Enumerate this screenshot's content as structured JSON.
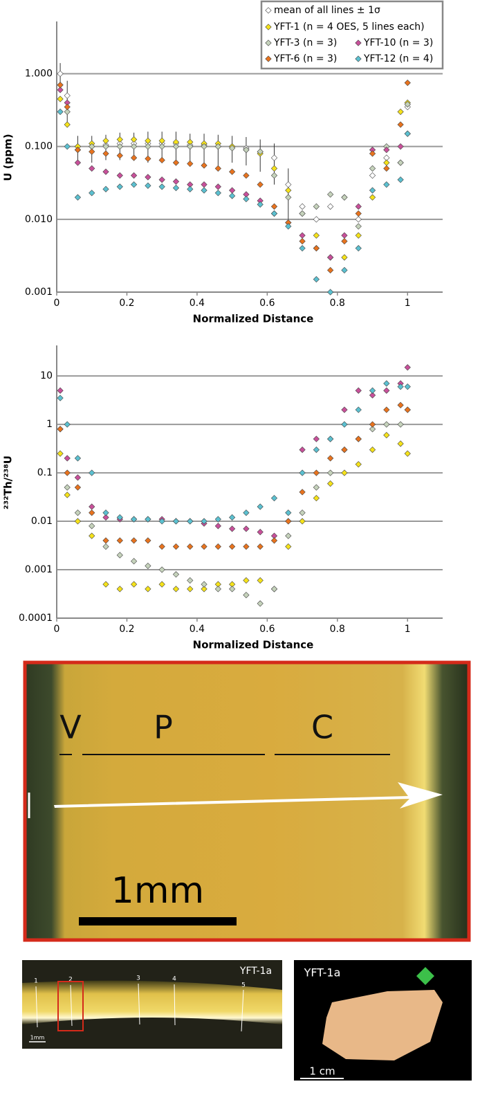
{
  "chart_data": [
    {
      "type": "scatter",
      "log_y": true,
      "grid": true,
      "legend": "upper right",
      "xlabel": "Normalized Distance",
      "ylabel": "U (ppm)",
      "xlim": [
        0,
        1.1
      ],
      "xticks": [
        0,
        0.2,
        0.4,
        0.6,
        0.8,
        1
      ],
      "ylim": [
        0.001,
        5
      ],
      "yticks": [
        {
          "value": 0.001,
          "label": "0.001"
        },
        {
          "value": 0.01,
          "label": "0.010"
        },
        {
          "value": 0.1,
          "label": "0.100"
        },
        {
          "value": 1,
          "label": "1.000"
        }
      ],
      "x": [
        0.01,
        0.03,
        0.06,
        0.1,
        0.14,
        0.18,
        0.22,
        0.26,
        0.3,
        0.34,
        0.38,
        0.42,
        0.46,
        0.5,
        0.54,
        0.58,
        0.62,
        0.66,
        0.7,
        0.74,
        0.78,
        0.82,
        0.86,
        0.9,
        0.94,
        0.98,
        1.0
      ],
      "series": [
        {
          "name": "mean of all lines ± 1σ",
          "color": "#ffffff",
          "values": [
            1.0,
            0.5,
            0.1,
            0.1,
            0.105,
            0.11,
            0.11,
            0.11,
            0.11,
            0.11,
            0.105,
            0.105,
            0.1,
            0.1,
            0.095,
            0.085,
            0.07,
            0.03,
            0.015,
            0.01,
            0.015,
            0.02,
            0.01,
            0.04,
            0.07,
            0.06,
            0.35
          ],
          "errors": [
            0.4,
            0.3,
            0.04,
            0.04,
            0.04,
            0.045,
            0.045,
            0.05,
            0.05,
            0.05,
            0.045,
            0.045,
            0.045,
            0.04,
            0.04,
            0.04,
            0.04,
            0.02,
            null,
            null,
            null,
            null,
            null,
            null,
            null,
            null,
            null
          ]
        },
        {
          "name": "YFT-1 (n = 4 OES, 5 lines each)",
          "color": "#f5e21a",
          "values": [
            0.45,
            0.2,
            0.1,
            0.11,
            0.12,
            0.125,
            0.125,
            0.12,
            0.12,
            0.115,
            0.115,
            0.11,
            0.11,
            0.1,
            0.09,
            0.08,
            0.05,
            0.025,
            0.012,
            0.006,
            0.003,
            0.003,
            0.006,
            0.02,
            0.06,
            0.3,
            0.4
          ]
        },
        {
          "name": "YFT-3 (n = 3)",
          "color": "#c5d2bb",
          "values": [
            0.7,
            0.3,
            0.09,
            0.1,
            0.1,
            0.1,
            0.1,
            0.1,
            0.1,
            0.1,
            0.1,
            0.1,
            0.1,
            0.095,
            0.09,
            0.085,
            0.04,
            0.02,
            0.012,
            0.015,
            0.022,
            0.02,
            0.008,
            0.05,
            0.1,
            0.06,
            0.38
          ]
        },
        {
          "name": "YFT-10 (n = 3)",
          "color": "#c8509a",
          "values": [
            0.6,
            0.4,
            0.06,
            0.05,
            0.045,
            0.04,
            0.04,
            0.038,
            0.035,
            0.033,
            0.03,
            0.03,
            0.028,
            0.025,
            0.022,
            0.018,
            0.012,
            0.009,
            0.006,
            0.004,
            0.003,
            0.006,
            0.015,
            0.09,
            0.09,
            0.1,
            0.15
          ]
        },
        {
          "name": "YFT-6 (n = 3)",
          "color": "#e8731e",
          "values": [
            0.7,
            0.35,
            0.09,
            0.085,
            0.08,
            0.075,
            0.07,
            0.068,
            0.065,
            0.06,
            0.058,
            0.055,
            0.05,
            0.045,
            0.04,
            0.03,
            0.015,
            0.009,
            0.005,
            0.004,
            0.002,
            0.005,
            0.012,
            0.08,
            0.05,
            0.2,
            0.75
          ]
        },
        {
          "name": "YFT-12 (n = 4)",
          "color": "#5bc0d0",
          "values": [
            0.3,
            0.1,
            0.02,
            0.023,
            0.026,
            0.028,
            0.03,
            0.029,
            0.028,
            0.027,
            0.026,
            0.025,
            0.023,
            0.021,
            0.019,
            0.016,
            0.012,
            0.008,
            0.004,
            0.0015,
            0.001,
            0.002,
            0.004,
            0.025,
            0.03,
            0.035,
            0.15
          ]
        }
      ]
    },
    {
      "type": "scatter",
      "log_y": true,
      "grid": true,
      "xlabel": "Normalized Distance",
      "ylabel": "²³²Th/²³⁸U",
      "xlim": [
        0,
        1.1
      ],
      "xticks": [
        0,
        0.2,
        0.4,
        0.6,
        0.8,
        1
      ],
      "ylim": [
        0.0001,
        40
      ],
      "yticks": [
        0.0001,
        0.001,
        0.01,
        0.1,
        1,
        10
      ],
      "x": [
        0.01,
        0.03,
        0.06,
        0.1,
        0.14,
        0.18,
        0.22,
        0.26,
        0.3,
        0.34,
        0.38,
        0.42,
        0.46,
        0.5,
        0.54,
        0.58,
        0.62,
        0.66,
        0.7,
        0.74,
        0.78,
        0.82,
        0.86,
        0.9,
        0.94,
        0.98,
        1.0
      ],
      "series": [
        {
          "color": "#f5e21a",
          "values": [
            0.25,
            0.035,
            0.01,
            0.005,
            0.0005,
            0.0004,
            0.0005,
            0.0004,
            0.0005,
            0.0004,
            0.0004,
            0.0004,
            0.0005,
            0.0005,
            0.0006,
            0.0006,
            0.0004,
            0.003,
            0.01,
            0.03,
            0.06,
            0.1,
            0.15,
            0.3,
            0.6,
            0.4,
            0.25
          ]
        },
        {
          "color": "#c5d2bb",
          "values": [
            0.8,
            0.05,
            0.015,
            0.008,
            0.003,
            0.002,
            0.0015,
            0.0012,
            0.001,
            0.0008,
            0.0006,
            0.0005,
            0.0004,
            0.0004,
            0.0003,
            0.0002,
            0.0004,
            0.005,
            0.015,
            0.05,
            0.1,
            0.3,
            0.5,
            0.8,
            1,
            1,
            2
          ]
        },
        {
          "color": "#c8509a",
          "values": [
            5,
            0.2,
            0.08,
            0.02,
            0.012,
            0.011,
            0.011,
            0.011,
            0.011,
            0.01,
            0.01,
            0.009,
            0.008,
            0.007,
            0.007,
            0.006,
            0.005,
            0.01,
            0.3,
            0.5,
            0.5,
            2,
            5,
            4,
            5,
            7,
            15
          ]
        },
        {
          "color": "#e8731e",
          "values": [
            0.8,
            0.1,
            0.05,
            0.015,
            0.004,
            0.004,
            0.004,
            0.004,
            0.003,
            0.003,
            0.003,
            0.003,
            0.003,
            0.003,
            0.003,
            0.003,
            0.004,
            0.01,
            0.04,
            0.1,
            0.2,
            0.3,
            0.5,
            1,
            2,
            2.5,
            2
          ]
        },
        {
          "color": "#5bc0d0",
          "values": [
            3.5,
            1,
            0.2,
            0.1,
            0.015,
            0.012,
            0.011,
            0.011,
            0.01,
            0.01,
            0.01,
            0.01,
            0.011,
            0.012,
            0.015,
            0.02,
            0.03,
            0.015,
            0.1,
            0.3,
            0.5,
            1,
            2,
            5,
            7,
            6,
            6
          ]
        }
      ]
    }
  ],
  "photos": {
    "main": {
      "zones": [
        "V",
        "P",
        "C"
      ],
      "scale": "1mm"
    },
    "overview": {
      "sample": "YFT-1a",
      "lines": [
        "1",
        "2",
        "3",
        "4",
        "5"
      ],
      "scale": "1mm"
    },
    "fragment": {
      "sample": "YFT-1a",
      "scale": "1 cm"
    }
  }
}
